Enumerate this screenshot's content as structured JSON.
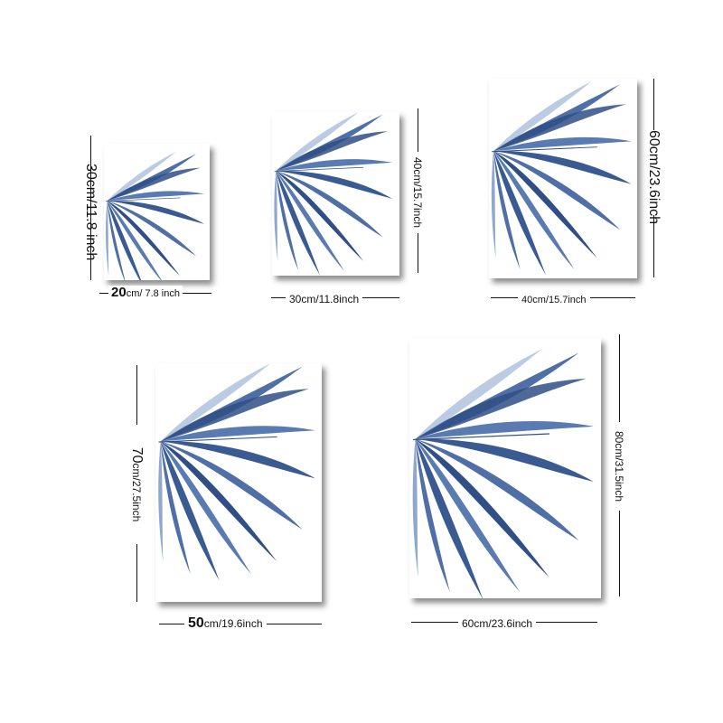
{
  "colors": {
    "leaf_dark": "#2f4f86",
    "leaf_mid": "#4f6fa6",
    "leaf_light": "#8ea8cf"
  },
  "posters": [
    {
      "name": "poster-20x30",
      "width_label": {
        "num": "20",
        "unit": "cm/ 7.8 inch"
      },
      "height_label": {
        "num": "30",
        "unit": "cm/11.8 inch"
      }
    },
    {
      "name": "poster-30x40",
      "width_label": {
        "num": "",
        "unit": "30cm/11.8inch"
      },
      "height_label": {
        "num": "",
        "unit": "40cm/15.7inch"
      }
    },
    {
      "name": "poster-40x60",
      "width_label": {
        "num": "",
        "unit": "40cm/15.7inch"
      },
      "height_label": {
        "num": "",
        "unit": "60cm/23.6inch"
      }
    },
    {
      "name": "poster-50x70",
      "width_label": {
        "num": "50",
        "unit": "cm/19.6inch"
      },
      "height_label": {
        "num": "70",
        "unit": "cm/27.5inch"
      }
    },
    {
      "name": "poster-60x80",
      "width_label": {
        "num": "",
        "unit": "60cm/23.6inch"
      },
      "height_label": {
        "num": "",
        "unit": "80cm/31.5inch"
      }
    }
  ]
}
